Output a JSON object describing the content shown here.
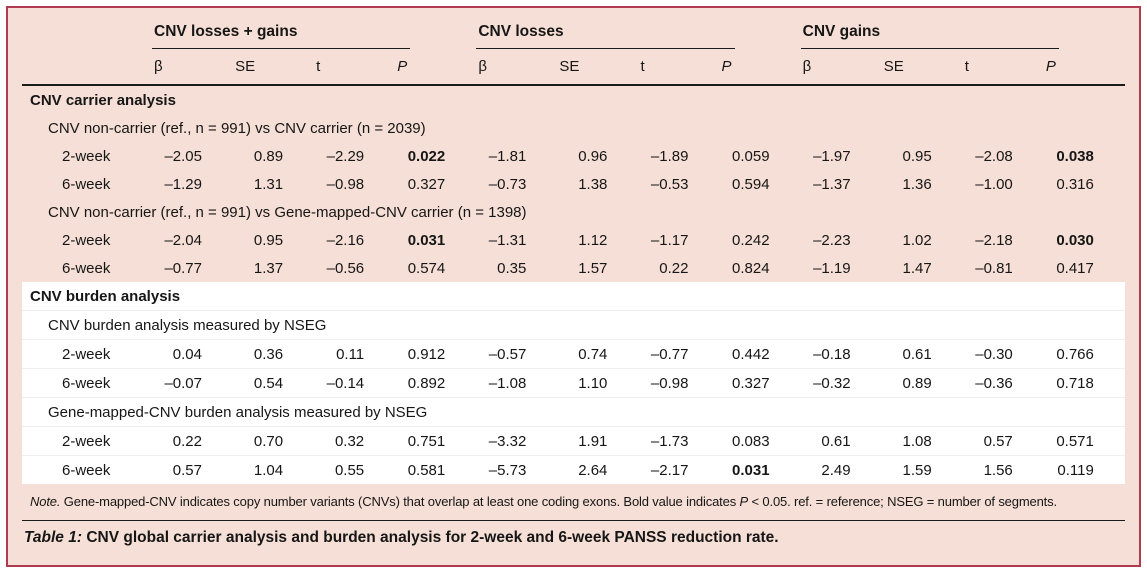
{
  "colors": {
    "table_background": "#f6dfd6",
    "frame_border": "#b23a4e",
    "highlight_band": "#ffffff",
    "rule": "#1b1b1b",
    "text": "#161616"
  },
  "header": {
    "groups": [
      {
        "label": "CNV losses + gains"
      },
      {
        "label": "CNV losses"
      },
      {
        "label": "CNV gains"
      }
    ],
    "subcolumns": [
      "β",
      "SE",
      "t",
      "P"
    ]
  },
  "sections": [
    {
      "title": "CNV carrier analysis",
      "highlight": false,
      "subsections": [
        {
          "label": "CNV non-carrier (ref., n = 991) vs CNV carrier (n = 2039)",
          "rows": [
            {
              "label": "2-week",
              "values": [
                "–2.05",
                "0.89",
                "–2.29",
                "0.022",
                "–1.81",
                "0.96",
                "–1.89",
                "0.059",
                "–1.97",
                "0.95",
                "–2.08",
                "0.038"
              ],
              "bold": [
                3,
                11
              ]
            },
            {
              "label": "6-week",
              "values": [
                "–1.29",
                "1.31",
                "–0.98",
                "0.327",
                "–0.73",
                "1.38",
                "–0.53",
                "0.594",
                "–1.37",
                "1.36",
                "–1.00",
                "0.316"
              ],
              "bold": []
            }
          ]
        },
        {
          "label": "CNV non-carrier (ref., n = 991) vs Gene-mapped-CNV carrier (n = 1398)",
          "rows": [
            {
              "label": "2-week",
              "values": [
                "–2.04",
                "0.95",
                "–2.16",
                "0.031",
                "–1.31",
                "1.12",
                "–1.17",
                "0.242",
                "–2.23",
                "1.02",
                "–2.18",
                "0.030"
              ],
              "bold": [
                3,
                11
              ]
            },
            {
              "label": "6-week",
              "values": [
                "–0.77",
                "1.37",
                "–0.56",
                "0.574",
                "0.35",
                "1.57",
                "0.22",
                "0.824",
                "–1.19",
                "1.47",
                "–0.81",
                "0.417"
              ],
              "bold": []
            }
          ]
        }
      ]
    },
    {
      "title": "CNV burden analysis",
      "highlight": true,
      "subsections": [
        {
          "label": "CNV burden analysis measured by NSEG",
          "rows": [
            {
              "label": "2-week",
              "values": [
                "0.04",
                "0.36",
                "0.11",
                "0.912",
                "–0.57",
                "0.74",
                "–0.77",
                "0.442",
                "–0.18",
                "0.61",
                "–0.30",
                "0.766"
              ],
              "bold": []
            },
            {
              "label": "6-week",
              "values": [
                "–0.07",
                "0.54",
                "–0.14",
                "0.892",
                "–1.08",
                "1.10",
                "–0.98",
                "0.327",
                "–0.32",
                "0.89",
                "–0.36",
                "0.718"
              ],
              "bold": []
            }
          ]
        },
        {
          "label": "Gene-mapped-CNV burden analysis measured by NSEG",
          "rows": [
            {
              "label": "2-week",
              "values": [
                "0.22",
                "0.70",
                "0.32",
                "0.751",
                "–3.32",
                "1.91",
                "–1.73",
                "0.083",
                "0.61",
                "1.08",
                "0.57",
                "0.571"
              ],
              "bold": []
            },
            {
              "label": "6-week",
              "values": [
                "0.57",
                "1.04",
                "0.55",
                "0.581",
                "–5.73",
                "2.64",
                "–2.17",
                "0.031",
                "2.49",
                "1.59",
                "1.56",
                "0.119"
              ],
              "bold": [
                7
              ]
            }
          ]
        }
      ]
    }
  ],
  "note": {
    "prefix": "Note.",
    "text1": " Gene-mapped-CNV indicates copy number variants (CNVs) that overlap at least one coding exons. Bold value indicates ",
    "p_symbol": "P",
    "text2": " < 0.05. ref. = reference; NSEG = number of segments."
  },
  "caption": {
    "table_word": "Table",
    "number": " 1: ",
    "text": "CNV global carrier analysis and burden analysis for 2-week and 6-week PANSS reduction rate."
  }
}
